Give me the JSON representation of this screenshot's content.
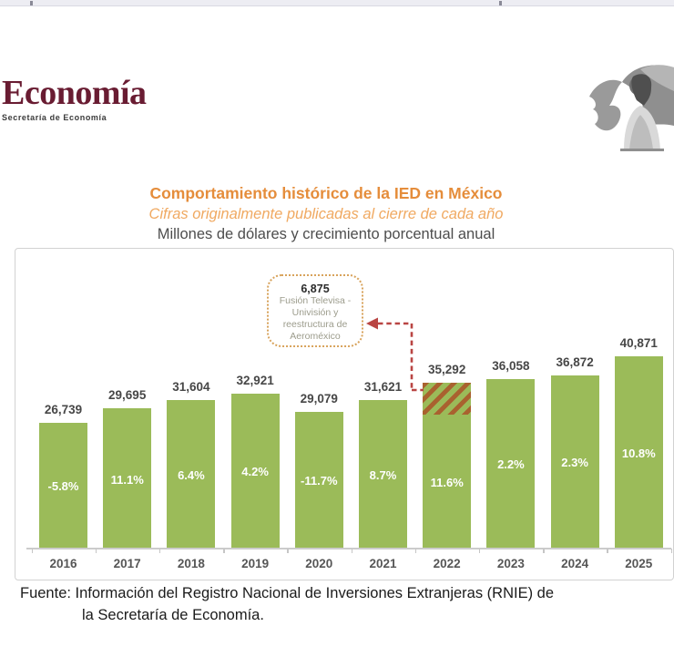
{
  "header": {
    "logo_title": "Economía",
    "logo_subtitle": "Secretaría de Economía",
    "brand_color": "#691C32"
  },
  "titles": {
    "title": "Comportamiento histórico de la IED en México",
    "subtitle": "Cifras originalmente publicadas al cierre de cada año",
    "units_line": "Millones de dólares y crecimiento porcentual anual"
  },
  "chart_data": {
    "type": "bar",
    "title": "Comportamiento histórico de la IED en México",
    "subtitle": "Cifras originalmente publicadas al cierre de cada año",
    "units": "Millones de dólares y crecimiento porcentual anual",
    "categories": [
      "2016",
      "2017",
      "2018",
      "2019",
      "2020",
      "2021",
      "2022",
      "2023",
      "2024",
      "2025"
    ],
    "series": [
      {
        "name": "IED (millones de dólares)",
        "values": [
          26739,
          29695,
          31604,
          32921,
          29079,
          31621,
          35292,
          36058,
          36872,
          40871
        ]
      },
      {
        "name": "Crecimiento porcentual anual",
        "values": [
          -5.8,
          11.1,
          6.4,
          4.2,
          -11.7,
          8.7,
          11.6,
          2.2,
          2.3,
          10.8
        ]
      }
    ],
    "value_labels": [
      "26,739",
      "29,695",
      "31,604",
      "32,921",
      "29,079",
      "31,621",
      "35,292",
      "36,058",
      "36,872",
      "40,871"
    ],
    "pct_labels": [
      "-5.8%",
      "11.1%",
      "6.4%",
      "4.2%",
      "-11.7%",
      "8.7%",
      "11.6%",
      "2.2%",
      "2.3%",
      "10.8%"
    ],
    "highlight": {
      "category": "2022",
      "hatch_value": 6875,
      "hatch_label": "6,875"
    },
    "bar_color": "#9BBB59",
    "hatch_stripe_color": "#A9622F",
    "ylim": [
      0,
      41000
    ],
    "grid": false,
    "legend": "none"
  },
  "annotation": {
    "value": "6,875",
    "lines": [
      "Fusión Televisa -",
      "Univisión y",
      "reestructura de",
      "Aeroméxico"
    ],
    "arrow_color": "#B94543",
    "border_color": "#D8A35C"
  },
  "footer": {
    "line1": "Fuente: Información del Registro Nacional de Inversiones Extranjeras (RNIE) de",
    "line2": "la Secretaría de Economía."
  },
  "illustration": "woman-with-flag"
}
